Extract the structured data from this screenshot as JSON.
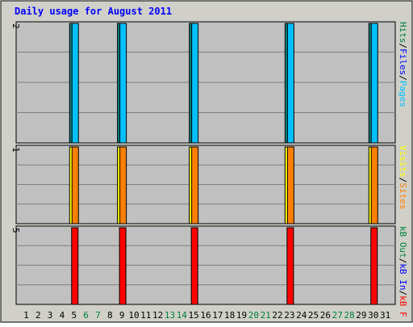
{
  "chart_data": {
    "type": "bar",
    "title": "Daily usage for August 2011",
    "categories": [
      "1",
      "2",
      "3",
      "4",
      "5",
      "6",
      "7",
      "8",
      "9",
      "10",
      "11",
      "12",
      "13",
      "14",
      "15",
      "16",
      "17",
      "18",
      "19",
      "20",
      "21",
      "22",
      "23",
      "24",
      "25",
      "26",
      "27",
      "28",
      "29",
      "30",
      "31"
    ],
    "weekend_days": [
      "6",
      "7",
      "13",
      "14",
      "20",
      "21",
      "27",
      "28"
    ],
    "grid": true,
    "panels": [
      {
        "id": "hits-files-pages",
        "ymax_label": "2",
        "ylim": [
          0,
          2
        ],
        "legend": [
          {
            "label": "Pages",
            "color": "#00c0ff"
          },
          {
            "label": "/",
            "color": "#000000"
          },
          {
            "label": "Files",
            "color": "#0000ff"
          },
          {
            "label": "/",
            "color": "#000000"
          },
          {
            "label": "Hits",
            "color": "#008040"
          }
        ],
        "series": [
          {
            "name": "Hits",
            "color": "#008080",
            "values": [
              0,
              0,
              0,
              0,
              2,
              0,
              0,
              0,
              2,
              0,
              0,
              0,
              0,
              0,
              2,
              0,
              0,
              0,
              0,
              0,
              0,
              0,
              2,
              0,
              0,
              0,
              0,
              0,
              0,
              2,
              0
            ]
          },
          {
            "name": "Files",
            "color": "#0000ff",
            "values": [
              0,
              0,
              0,
              0,
              0,
              0,
              0,
              0,
              0,
              0,
              0,
              0,
              0,
              0,
              0,
              0,
              0,
              0,
              0,
              0,
              0,
              0,
              0,
              0,
              0,
              0,
              0,
              0,
              0,
              0,
              0
            ]
          },
          {
            "name": "Pages",
            "color": "#00c0ff",
            "values": [
              0,
              0,
              0,
              0,
              2,
              0,
              0,
              0,
              2,
              0,
              0,
              0,
              0,
              0,
              2,
              0,
              0,
              0,
              0,
              0,
              0,
              0,
              2,
              0,
              0,
              0,
              0,
              0,
              0,
              2,
              0
            ]
          }
        ]
      },
      {
        "id": "visits-sites",
        "ymax_label": "1",
        "ylim": [
          0,
          1
        ],
        "legend": [
          {
            "label": "Sites",
            "color": "#ff8000"
          },
          {
            "label": "/",
            "color": "#000000"
          },
          {
            "label": "Visits",
            "color": "#ffff00"
          }
        ],
        "series": [
          {
            "name": "Visits",
            "color": "#ffff00",
            "values": [
              0,
              0,
              0,
              0,
              1,
              0,
              0,
              0,
              1,
              0,
              0,
              0,
              0,
              0,
              1,
              0,
              0,
              0,
              0,
              0,
              0,
              0,
              1,
              0,
              0,
              0,
              0,
              0,
              0,
              1,
              0
            ]
          },
          {
            "name": "Sites",
            "color": "#ff8000",
            "values": [
              0,
              0,
              0,
              0,
              1,
              0,
              0,
              0,
              1,
              0,
              0,
              0,
              0,
              0,
              1,
              0,
              0,
              0,
              0,
              0,
              0,
              0,
              1,
              0,
              0,
              0,
              0,
              0,
              0,
              1,
              0
            ]
          }
        ]
      },
      {
        "id": "kbytes",
        "ymax_label": "5",
        "ylim": [
          0,
          5
        ],
        "legend": [
          {
            "label": "kB F",
            "color": "#ff0000"
          },
          {
            "label": "/",
            "color": "#000000"
          },
          {
            "label": "kB In",
            "color": "#0000ff"
          },
          {
            "label": "/",
            "color": "#000000"
          },
          {
            "label": "kB Out",
            "color": "#008040"
          }
        ],
        "series": [
          {
            "name": "kB F",
            "color": "#ff0000",
            "values": [
              0,
              0,
              0,
              0,
              5,
              0,
              0,
              0,
              5,
              0,
              0,
              0,
              0,
              0,
              5,
              0,
              0,
              0,
              0,
              0,
              0,
              0,
              5,
              0,
              0,
              0,
              0,
              0,
              0,
              5,
              0
            ]
          }
        ]
      }
    ]
  },
  "colors": {
    "title": "#0000ff",
    "frame_bg": "#d0d0c8",
    "plot_bg": "#c0c0c0",
    "grid": "#808080",
    "weekday_label": "#000000",
    "weekend_label": "#008040"
  }
}
